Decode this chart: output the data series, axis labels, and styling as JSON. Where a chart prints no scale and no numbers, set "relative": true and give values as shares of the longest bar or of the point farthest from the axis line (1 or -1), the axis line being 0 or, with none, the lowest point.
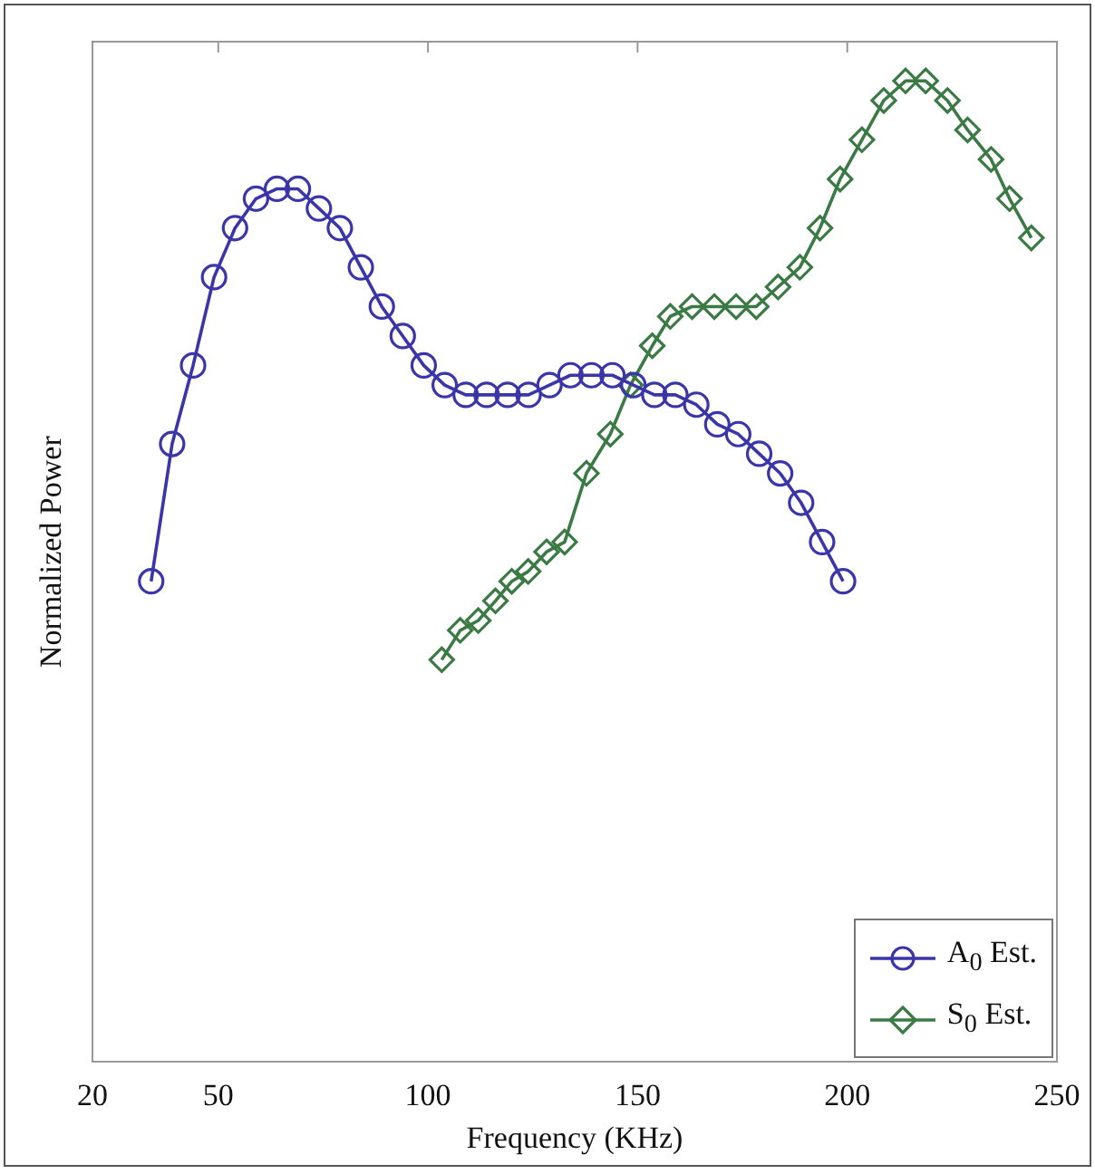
{
  "chart_data": {
    "type": "line",
    "xlabel": "Frequency (KHz)",
    "ylabel": "Normalized Power",
    "relative": true,
    "xlim": [
      20,
      250
    ],
    "xticks": [
      20,
      50,
      100,
      150,
      200,
      250
    ],
    "grid": false,
    "legend": "bottom right",
    "line_style": "solid",
    "series": [
      {
        "name": "A$_{0}$ Est.",
        "color": "#3a35a8",
        "marker": "circle",
        "x": [
          34,
          39,
          44,
          49,
          54,
          59,
          64,
          69,
          74,
          79,
          84,
          89,
          94,
          99,
          104,
          109,
          114,
          119,
          124,
          129,
          134,
          139,
          144,
          149,
          154,
          159,
          164,
          169,
          174,
          179,
          184,
          189,
          194,
          199
        ],
        "values": [
          0.49,
          0.63,
          0.71,
          0.8,
          0.85,
          0.88,
          0.89,
          0.89,
          0.87,
          0.85,
          0.81,
          0.77,
          0.74,
          0.71,
          0.69,
          0.68,
          0.68,
          0.68,
          0.68,
          0.69,
          0.7,
          0.7,
          0.7,
          0.69,
          0.68,
          0.68,
          0.67,
          0.65,
          0.64,
          0.62,
          0.6,
          0.57,
          0.53,
          0.49
        ]
      },
      {
        "name": "S$_{0}$ Est.",
        "color": "#3b7a45",
        "marker": "diamond",
        "x": [
          103.3,
          107.7,
          112,
          116.1,
          120,
          123.9,
          128.3,
          132.6,
          137.8,
          143.5,
          148.3,
          153.5,
          157.8,
          163,
          168.3,
          173.5,
          178.3,
          183.5,
          188.7,
          193.5,
          198.3,
          203.5,
          208.7,
          213.9,
          218.7,
          223.9,
          228.7,
          234.3,
          238.7,
          243.9
        ],
        "values": [
          0.41,
          0.44,
          0.45,
          0.47,
          0.49,
          0.5,
          0.52,
          0.53,
          0.6,
          0.64,
          0.69,
          0.73,
          0.76,
          0.77,
          0.77,
          0.77,
          0.77,
          0.79,
          0.81,
          0.85,
          0.9,
          0.94,
          0.98,
          1,
          1,
          0.98,
          0.95,
          0.92,
          0.88,
          0.84
        ]
      }
    ]
  }
}
